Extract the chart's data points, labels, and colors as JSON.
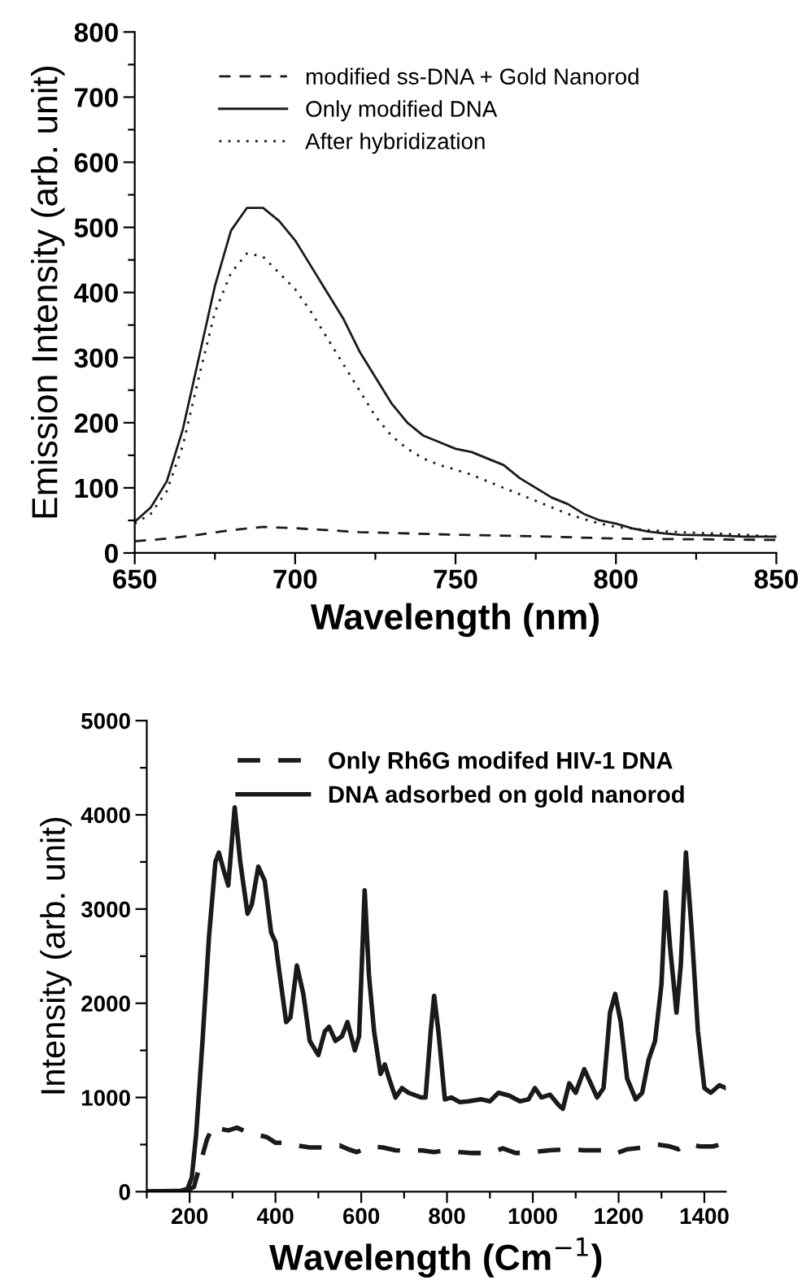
{
  "chart_data": [
    {
      "type": "line",
      "xlabel": "Wavelength (nm)",
      "ylabel": "Emission Intensity (arb. unit)",
      "xlim": [
        650,
        850
      ],
      "ylim": [
        0,
        800
      ],
      "xticks": [
        650,
        {
          "value": 675,
          "label": null
        },
        700,
        {
          "value": 725,
          "label": null
        },
        750,
        {
          "value": 775,
          "label": null
        },
        800,
        {
          "value": 825,
          "label": null
        },
        850
      ],
      "yticks": [
        0,
        {
          "value": 50,
          "label": null
        },
        100,
        {
          "value": 150,
          "label": null
        },
        200,
        {
          "value": 250,
          "label": null
        },
        300,
        {
          "value": 350,
          "label": null
        },
        400,
        {
          "value": 450,
          "label": null
        },
        500,
        {
          "value": 550,
          "label": null
        },
        600,
        {
          "value": 650,
          "label": null
        },
        700,
        {
          "value": 750,
          "label": null
        },
        800
      ],
      "grid": false,
      "legend": "top left",
      "marker": "none",
      "series": [
        {
          "name": "modified ss-DNA + Gold Nanorod",
          "color": "#1a1a1a",
          "line_style": "dashed",
          "x": [
            650,
            660,
            670,
            680,
            690,
            700,
            710,
            720,
            750,
            780,
            800,
            850
          ],
          "values": [
            18,
            22,
            28,
            35,
            40,
            38,
            35,
            32,
            28,
            25,
            22,
            20
          ]
        },
        {
          "name": "Only modified DNA",
          "color": "#1a1a1a",
          "line_style": "solid",
          "x": [
            650,
            655,
            660,
            665,
            670,
            675,
            680,
            685,
            690,
            695,
            700,
            705,
            710,
            715,
            720,
            725,
            730,
            735,
            740,
            745,
            750,
            755,
            760,
            765,
            770,
            775,
            780,
            785,
            790,
            795,
            800,
            805,
            810,
            815,
            820,
            830,
            840,
            850
          ],
          "values": [
            48,
            70,
            110,
            190,
            300,
            410,
            495,
            530,
            530,
            510,
            480,
            440,
            400,
            360,
            310,
            270,
            230,
            200,
            180,
            170,
            160,
            155,
            145,
            135,
            115,
            100,
            85,
            75,
            60,
            50,
            45,
            38,
            33,
            30,
            28,
            27,
            25,
            25
          ]
        },
        {
          "name": "After hybridization",
          "color": "#1a1a1a",
          "line_style": "dotted",
          "x": [
            650,
            655,
            660,
            665,
            670,
            675,
            680,
            685,
            690,
            695,
            700,
            705,
            710,
            715,
            720,
            725,
            730,
            735,
            740,
            745,
            750,
            755,
            760,
            765,
            770,
            775,
            780,
            785,
            790,
            795,
            800,
            810,
            820,
            830,
            840,
            850
          ],
          "values": [
            45,
            60,
            95,
            165,
            270,
            370,
            430,
            460,
            455,
            430,
            405,
            370,
            330,
            290,
            250,
            210,
            180,
            160,
            145,
            135,
            128,
            120,
            110,
            100,
            90,
            80,
            70,
            60,
            52,
            45,
            40,
            35,
            32,
            30,
            28,
            25
          ]
        }
      ]
    },
    {
      "type": "line",
      "xlabel": "Wavelength (Cm$^{−1}$)",
      "ylabel": "Intensity (arb. unit)",
      "xlim": [
        100,
        1450
      ],
      "ylim": [
        0,
        5000
      ],
      "xticks": [
        {
          "value": 100,
          "label": null
        },
        200,
        {
          "value": 300,
          "label": null
        },
        400,
        {
          "value": 500,
          "label": null
        },
        600,
        {
          "value": 700,
          "label": null
        },
        800,
        {
          "value": 900,
          "label": null
        },
        1000,
        {
          "value": 1100,
          "label": null
        },
        1200,
        {
          "value": 1300,
          "label": null
        },
        1400
      ],
      "yticks": [
        0,
        {
          "value": 500,
          "label": null
        },
        1000,
        {
          "value": 1500,
          "label": null
        },
        2000,
        {
          "value": 2500,
          "label": null
        },
        3000,
        {
          "value": 3500,
          "label": null
        },
        4000,
        {
          "value": 4500,
          "label": null
        },
        5000
      ],
      "grid": false,
      "legend": "top left",
      "marker": "none",
      "series": [
        {
          "name": "Only Rh6G modifed HIV-1 DNA",
          "color": "#1a1a1a",
          "line_style": "dashed",
          "x": [
            100,
            190,
            210,
            225,
            240,
            255,
            270,
            290,
            310,
            330,
            360,
            380,
            400,
            430,
            450,
            480,
            520,
            550,
            570,
            590,
            620,
            650,
            680,
            710,
            740,
            770,
            800,
            830,
            860,
            900,
            930,
            960,
            1000,
            1040,
            1080,
            1120,
            1160,
            1190,
            1220,
            1260,
            1290,
            1320,
            1340,
            1360,
            1390,
            1420,
            1450
          ],
          "values": [
            0,
            5,
            50,
            300,
            550,
            700,
            670,
            650,
            680,
            640,
            600,
            580,
            520,
            520,
            490,
            470,
            470,
            490,
            450,
            420,
            480,
            470,
            440,
            430,
            440,
            420,
            440,
            420,
            410,
            410,
            460,
            410,
            420,
            440,
            450,
            440,
            440,
            400,
            450,
            470,
            500,
            480,
            450,
            510,
            480,
            480,
            520
          ]
        },
        {
          "name": "DNA adsorbed on gold nanorod",
          "color": "#1a1a1a",
          "line_style": "solid",
          "x": [
            100,
            180,
            195,
            205,
            215,
            230,
            245,
            260,
            268,
            280,
            290,
            305,
            318,
            335,
            345,
            360,
            375,
            390,
            400,
            410,
            425,
            435,
            450,
            465,
            480,
            500,
            515,
            525,
            540,
            555,
            568,
            585,
            595,
            608,
            618,
            630,
            645,
            655,
            665,
            680,
            695,
            710,
            740,
            750,
            762,
            770,
            780,
            795,
            810,
            830,
            850,
            880,
            900,
            920,
            945,
            970,
            990,
            1005,
            1020,
            1040,
            1060,
            1070,
            1085,
            1100,
            1120,
            1135,
            1150,
            1165,
            1180,
            1192,
            1205,
            1220,
            1240,
            1255,
            1270,
            1285,
            1300,
            1310,
            1320,
            1335,
            1345,
            1357,
            1370,
            1385,
            1400,
            1415,
            1435,
            1450
          ],
          "values": [
            0,
            10,
            30,
            150,
            600,
            1600,
            2700,
            3500,
            3600,
            3400,
            3250,
            4080,
            3500,
            2950,
            3050,
            3450,
            3300,
            2750,
            2650,
            2300,
            1800,
            1850,
            2400,
            2100,
            1600,
            1450,
            1700,
            1750,
            1600,
            1650,
            1800,
            1500,
            1650,
            3200,
            2300,
            1700,
            1250,
            1350,
            1200,
            1000,
            1100,
            1050,
            1000,
            1000,
            1700,
            2080,
            1700,
            980,
            1000,
            950,
            960,
            980,
            960,
            1050,
            1020,
            960,
            980,
            1100,
            1000,
            1030,
            920,
            880,
            1150,
            1050,
            1300,
            1150,
            1000,
            1100,
            1900,
            2100,
            1800,
            1200,
            980,
            1050,
            1400,
            1600,
            2200,
            3180,
            2600,
            1900,
            2400,
            3600,
            2800,
            1700,
            1100,
            1050,
            1130,
            1100
          ]
        }
      ]
    }
  ]
}
